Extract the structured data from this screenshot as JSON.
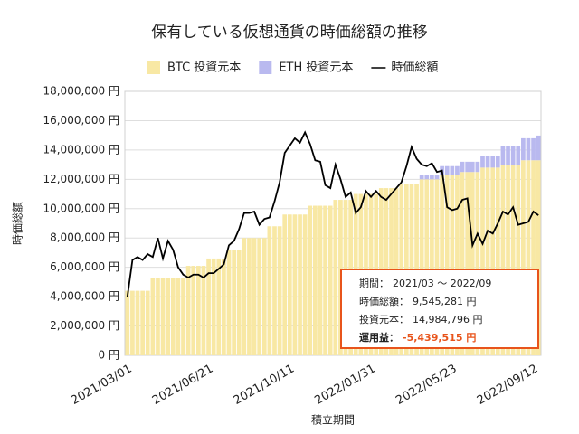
{
  "chart_data": {
    "type": "bar",
    "stacked": true,
    "title": "保有している仮想通貨の時価総額の推移",
    "x_label": "積立期間",
    "y_label": "時価総額",
    "categories": [
      "2021/03/01",
      null,
      null,
      null,
      null,
      null,
      null,
      null,
      null,
      null,
      null,
      null,
      null,
      null,
      null,
      null,
      "2021/06/21",
      null,
      null,
      null,
      null,
      null,
      null,
      null,
      null,
      null,
      null,
      null,
      null,
      null,
      null,
      null,
      "2021/10/11",
      null,
      null,
      null,
      null,
      null,
      null,
      null,
      null,
      null,
      null,
      null,
      null,
      null,
      null,
      null,
      "2022/01/31",
      null,
      null,
      null,
      null,
      null,
      null,
      null,
      null,
      null,
      null,
      null,
      null,
      null,
      null,
      null,
      "2022/05/23",
      null,
      null,
      null,
      null,
      null,
      null,
      null,
      null,
      null,
      null,
      null,
      null,
      null,
      null,
      null,
      "2022/09/12",
      null
    ],
    "series": [
      {
        "name": "BTC 投資元本",
        "type": "bar",
        "color": "#f8e8a4",
        "values": [
          4400000,
          4400000,
          4400000,
          4400000,
          4400000,
          5300000,
          5300000,
          5300000,
          5300000,
          5300000,
          5300000,
          5300000,
          6100000,
          6100000,
          6100000,
          6100000,
          6600000,
          6600000,
          6600000,
          6600000,
          7200000,
          7200000,
          7200000,
          8000000,
          8000000,
          8000000,
          8000000,
          8000000,
          8800000,
          8800000,
          8800000,
          9600000,
          9600000,
          9600000,
          9600000,
          9600000,
          10200000,
          10200000,
          10200000,
          10200000,
          10200000,
          10600000,
          10600000,
          10600000,
          10600000,
          11000000,
          11000000,
          11000000,
          11000000,
          11000000,
          11400000,
          11400000,
          11400000,
          11400000,
          11700000,
          11700000,
          11700000,
          11700000,
          12000000,
          12000000,
          12000000,
          12000000,
          12300000,
          12300000,
          12300000,
          12300000,
          12500000,
          12500000,
          12500000,
          12500000,
          12800000,
          12800000,
          12800000,
          12800000,
          13000000,
          13000000,
          13000000,
          13000000,
          13300000,
          13300000,
          13300000,
          13300000
        ]
      },
      {
        "name": "ETH 投資元本",
        "type": "bar",
        "color": "#b9b9ef",
        "values": [
          0,
          0,
          0,
          0,
          0,
          0,
          0,
          0,
          0,
          0,
          0,
          0,
          0,
          0,
          0,
          0,
          0,
          0,
          0,
          0,
          0,
          0,
          0,
          0,
          0,
          0,
          0,
          0,
          0,
          0,
          0,
          0,
          0,
          0,
          0,
          0,
          0,
          0,
          0,
          0,
          0,
          0,
          0,
          0,
          0,
          0,
          0,
          0,
          0,
          0,
          0,
          0,
          0,
          0,
          0,
          0,
          0,
          0,
          300000,
          300000,
          300000,
          300000,
          600000,
          600000,
          600000,
          600000,
          700000,
          700000,
          700000,
          700000,
          800000,
          800000,
          800000,
          800000,
          1300000,
          1300000,
          1300000,
          1300000,
          1500000,
          1500000,
          1500000,
          1684796
        ]
      },
      {
        "name": "時価総額",
        "type": "line",
        "color": "#000000",
        "values": [
          4000000,
          6500000,
          6700000,
          6500000,
          6900000,
          6700000,
          8000000,
          6600000,
          7800000,
          7200000,
          6000000,
          5500000,
          5300000,
          5500000,
          5500000,
          5300000,
          5600000,
          5600000,
          5900000,
          6200000,
          7500000,
          7800000,
          8600000,
          9700000,
          9700000,
          9800000,
          8900000,
          9300000,
          9400000,
          10500000,
          11800000,
          13800000,
          14300000,
          14800000,
          14500000,
          15200000,
          14400000,
          13300000,
          13200000,
          11600000,
          11400000,
          13000000,
          12000000,
          10800000,
          11100000,
          9700000,
          10100000,
          11200000,
          10800000,
          11200000,
          10800000,
          10600000,
          11000000,
          11400000,
          11800000,
          12900000,
          14200000,
          13400000,
          13000000,
          12900000,
          13100000,
          12500000,
          12600000,
          10100000,
          9900000,
          10000000,
          10600000,
          10700000,
          7500000,
          8300000,
          7600000,
          8500000,
          8300000,
          9000000,
          9800000,
          9600000,
          10100000,
          8900000,
          9000000,
          9100000,
          9800000,
          9545281
        ]
      }
    ],
    "ylim": [
      0,
      18000000
    ],
    "yticks": [
      {
        "value": 0,
        "label": "0 円"
      },
      {
        "value": 2000000,
        "label": "2,000,000 円"
      },
      {
        "value": 4000000,
        "label": "4,000,000 円"
      },
      {
        "value": 6000000,
        "label": "6,000,000 円"
      },
      {
        "value": 8000000,
        "label": "8,000,000 円"
      },
      {
        "value": 10000000,
        "label": "10,000,000 円"
      },
      {
        "value": 12000000,
        "label": "12,000,000 円"
      },
      {
        "value": 14000000,
        "label": "14,000,000 円"
      },
      {
        "value": 16000000,
        "label": "16,000,000 円"
      },
      {
        "value": 18000000,
        "label": "18,000,000 円"
      }
    ],
    "grid": true,
    "annotations": [
      {
        "label": "期間：",
        "value": "2021/03 ～ 2022/09"
      },
      {
        "label": "時価総額：",
        "value": "9,545,281 円"
      },
      {
        "label": "投資元本：",
        "value": "14,984,796 円"
      },
      {
        "label": "運用益：",
        "value": "-5,439,515 円"
      }
    ]
  }
}
